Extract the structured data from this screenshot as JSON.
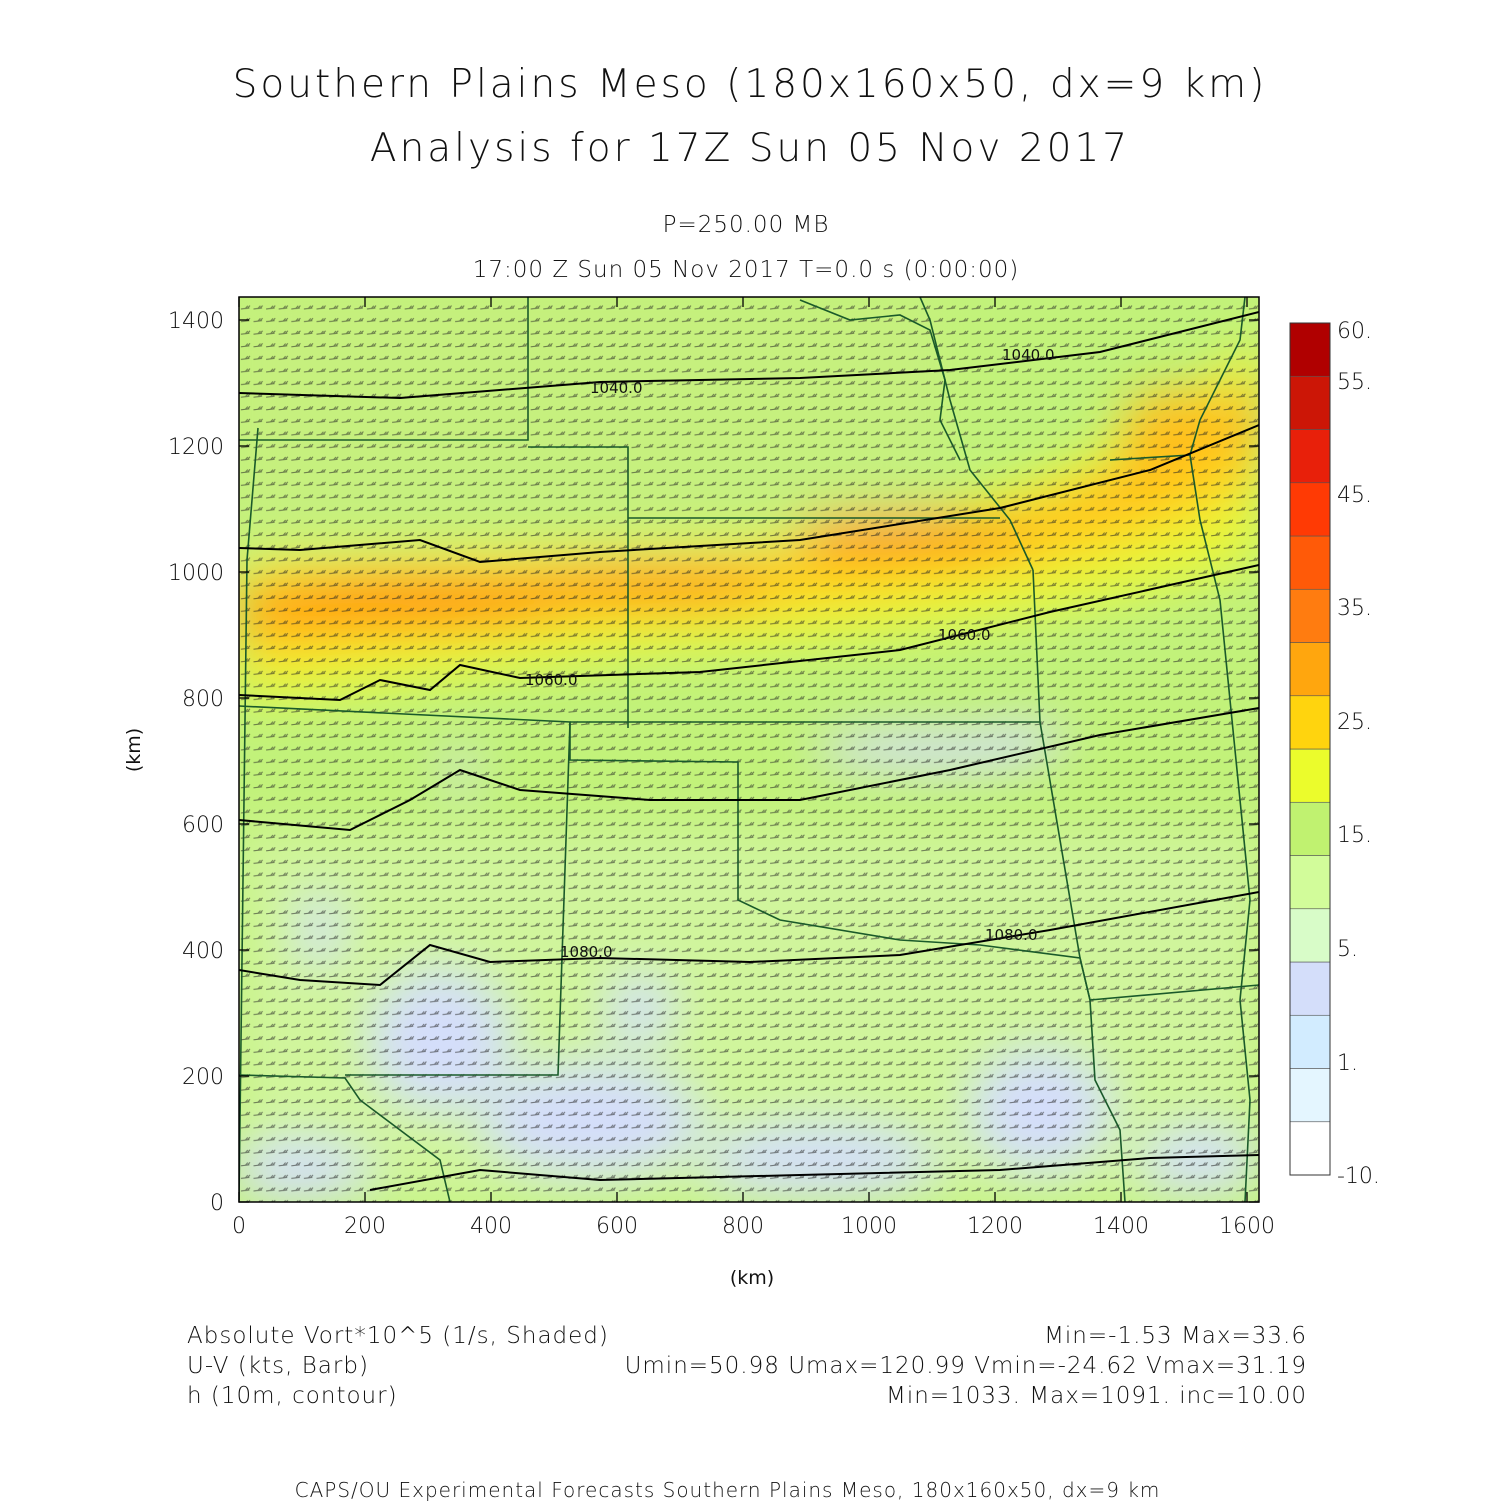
{
  "title": {
    "line1": "Southern Plains Meso (180x160x50, dx=9 km)",
    "line2": "Analysis for 17Z Sun 05 Nov 2017"
  },
  "subtitle": {
    "line1": "P=250.00 MB",
    "line2": "17:00 Z Sun 05 Nov 2017    T=0.0 s (0:00:00)"
  },
  "axes": {
    "xlabel": "(km)",
    "ylabel": "(km)",
    "x_ticks": [
      "0",
      "200",
      "400",
      "600",
      "800",
      "1000",
      "1200",
      "1400",
      "1600"
    ],
    "y_ticks": [
      "0",
      "200",
      "400",
      "600",
      "800",
      "1000",
      "1200",
      "1400"
    ],
    "xlim": [
      0,
      1620
    ],
    "ylim": [
      0,
      1435
    ]
  },
  "colorbar": {
    "labels": [
      "60.",
      "55.",
      "45.",
      "35.",
      "25.",
      "15.",
      "5.",
      "1.",
      "-10."
    ],
    "colors": [
      "#ffffff",
      "#e4f6ff",
      "#d2ecff",
      "#d4defa",
      "#d8fcc8",
      "#d2fc9a",
      "#c0f270",
      "#ebfc2c",
      "#ffd40e",
      "#ffa60e",
      "#ff7c10",
      "#ff5a08",
      "#ff3a04",
      "#e8200a",
      "#cc1606",
      "#b00000"
    ]
  },
  "chart_data": {
    "type": "heatmap",
    "field": "Absolute Vort*10^5 (1/s, Shaded)",
    "field_min": -1.53,
    "field_max": 33.6,
    "wind": {
      "label": "U-V (kts, Barb)",
      "umin": 50.98,
      "umax": 120.99,
      "vmin": -24.62,
      "vmax": 31.19
    },
    "height": {
      "label": "h (10m, contour)",
      "min": 1033,
      "max": 1091,
      "inc": 10.0
    },
    "contour_labels": [
      {
        "text": "1040.0",
        "x": 590,
        "y": 1300
      },
      {
        "text": "1040.0",
        "x": 1220,
        "y": 1345
      },
      {
        "text": "1060.0",
        "x": 460,
        "y": 830
      },
      {
        "text": "1060.0",
        "x": 1120,
        "y": 905
      },
      {
        "text": "1080.0",
        "x": 510,
        "y": 395
      },
      {
        "text": "1080.0",
        "x": 1190,
        "y": 420
      }
    ]
  },
  "footer": {
    "field1_label": "Absolute Vort*10^5 (1/s, Shaded)",
    "field1_stats": "Min=-1.53 Max=33.6",
    "field2_label": "U-V (kts, Barb)",
    "field2_stats": "Umin=50.98 Umax=120.99 Vmin=-24.62 Vmax=31.19",
    "field3_label": "h (10m, contour)",
    "field3_stats": "Min=1033. Max=1091. inc=10.00"
  },
  "credit": "CAPS/OU Experimental Forecasts  Southern Plains Meso, 180x160x50, dx=9 km"
}
